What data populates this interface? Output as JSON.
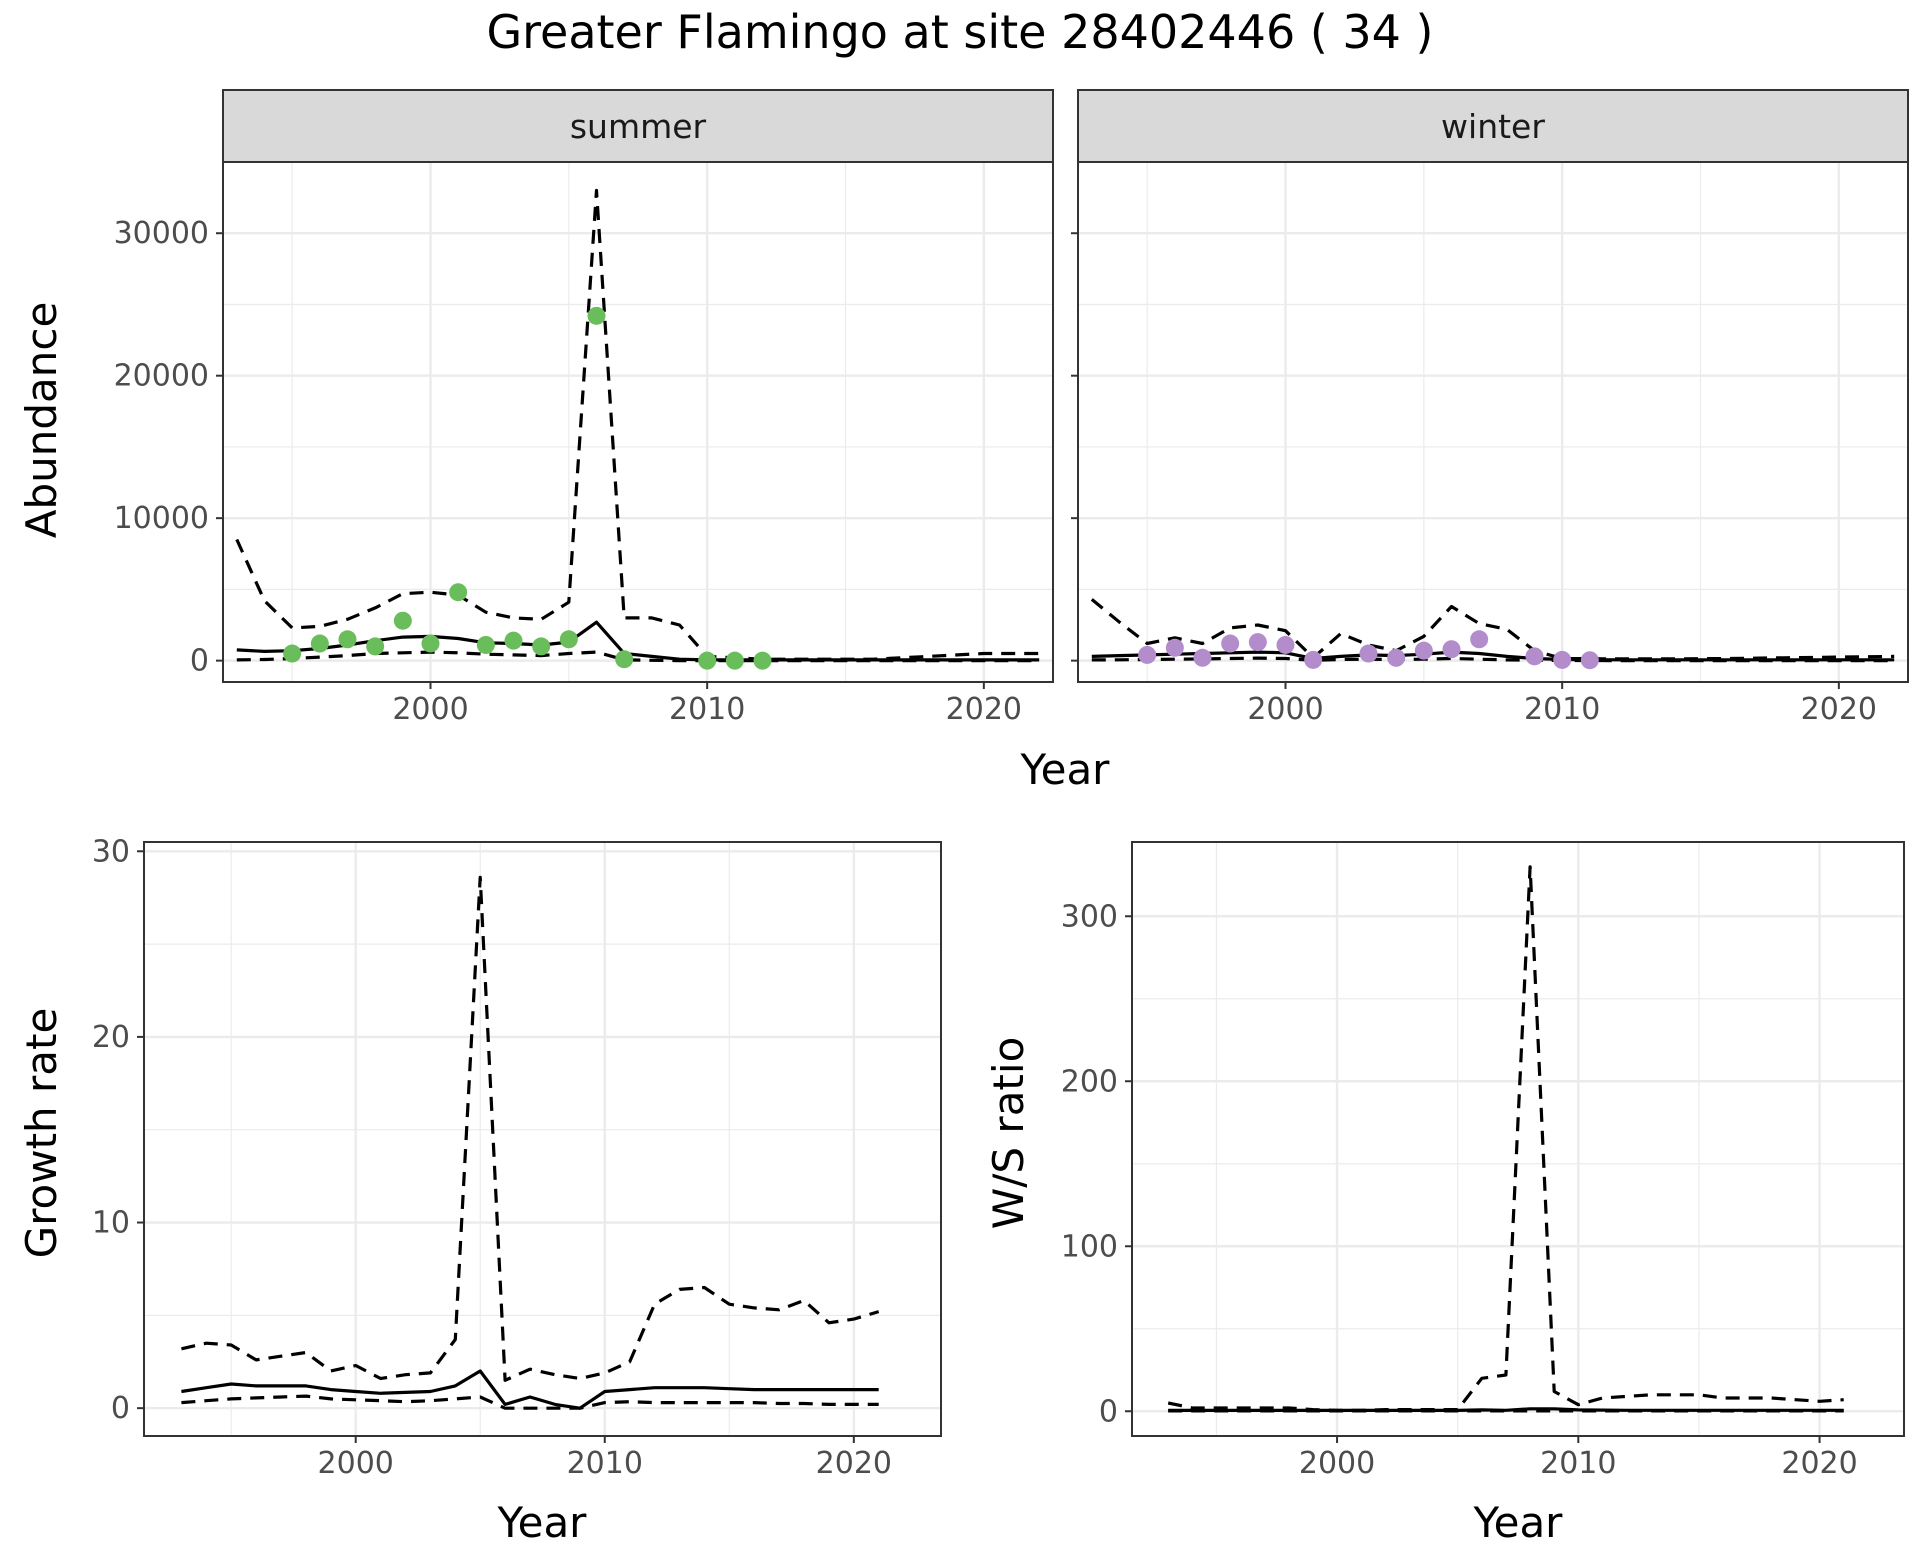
{
  "title": "Greater Flamingo at site 28402446 ( 34 )",
  "colors": {
    "summer_points": "#6abd5b",
    "winter_points": "#b38ccc",
    "lines": "#000000",
    "strip_fill": "#d9d9d9",
    "grid": "#ebebeb"
  },
  "chart_data": [
    {
      "type": "line",
      "panel": "summer",
      "strip_label": "summer",
      "xlabel": "",
      "ylabel": "Abundance",
      "xlim": [
        1992.5,
        2022.5
      ],
      "ylim": [
        -1500,
        35000
      ],
      "x_ticks": [
        2000,
        2010,
        2020
      ],
      "y_ticks": [
        0,
        10000,
        20000,
        30000
      ],
      "grid": true,
      "series": [
        {
          "role": "estimate",
          "style": "solid",
          "x": [
            1993,
            1994,
            1995,
            1996,
            1997,
            1998,
            1999,
            2000,
            2001,
            2002,
            2003,
            2004,
            2005,
            2006,
            2007,
            2008,
            2009,
            2010,
            2012,
            2014,
            2016,
            2018,
            2020,
            2022
          ],
          "y": [
            750,
            650,
            700,
            850,
            1100,
            1400,
            1650,
            1700,
            1550,
            1250,
            1200,
            1100,
            1300,
            2700,
            500,
            300,
            100,
            50,
            50,
            50,
            50,
            50,
            50,
            50
          ]
        },
        {
          "role": "upper",
          "style": "dashed",
          "x": [
            1993,
            1994,
            1995,
            1996,
            1997,
            1998,
            1999,
            2000,
            2001,
            2002,
            2003,
            2004,
            2005,
            2006,
            2007,
            2008,
            2009,
            2010,
            2012,
            2014,
            2016,
            2018,
            2020,
            2022
          ],
          "y": [
            8500,
            4200,
            2300,
            2400,
            2900,
            3700,
            4700,
            4800,
            4600,
            3400,
            3000,
            2900,
            4100,
            33000,
            3000,
            3000,
            2500,
            300,
            100,
            100,
            100,
            300,
            500,
            500
          ]
        },
        {
          "role": "lower",
          "style": "dashed",
          "x": [
            1993,
            1994,
            1995,
            1996,
            1997,
            1998,
            1999,
            2000,
            2001,
            2002,
            2003,
            2004,
            2005,
            2006,
            2007,
            2008,
            2009,
            2010,
            2012,
            2014,
            2016,
            2018,
            2020,
            2022
          ],
          "y": [
            50,
            80,
            150,
            250,
            350,
            500,
            550,
            600,
            550,
            450,
            400,
            350,
            500,
            600,
            60,
            20,
            5,
            0,
            0,
            0,
            0,
            0,
            0,
            0
          ]
        },
        {
          "role": "observed",
          "style": "points",
          "x": [
            1995,
            1996,
            1997,
            1998,
            1999,
            2000,
            2001,
            2002,
            2003,
            2004,
            2005,
            2006,
            2007,
            2010,
            2011,
            2012
          ],
          "y": [
            500,
            1200,
            1500,
            1000,
            2800,
            1200,
            4800,
            1100,
            1400,
            1000,
            1500,
            24200,
            100,
            0,
            0,
            0
          ]
        }
      ]
    },
    {
      "type": "line",
      "panel": "winter",
      "strip_label": "winter",
      "xlabel": "",
      "ylabel": "",
      "xlim": [
        1992.5,
        2022.5
      ],
      "ylim": [
        -1500,
        35000
      ],
      "x_ticks": [
        2000,
        2010,
        2020
      ],
      "y_ticks": [
        0,
        10000,
        20000,
        30000
      ],
      "grid": true,
      "series": [
        {
          "role": "estimate",
          "style": "solid",
          "x": [
            1993,
            1994,
            1995,
            1996,
            1997,
            1998,
            1999,
            2000,
            2001,
            2002,
            2003,
            2004,
            2005,
            2006,
            2007,
            2008,
            2009,
            2010,
            2012,
            2014,
            2016,
            2018,
            2020,
            2022
          ],
          "y": [
            300,
            350,
            400,
            450,
            500,
            550,
            600,
            550,
            150,
            300,
            400,
            350,
            450,
            600,
            500,
            300,
            150,
            80,
            60,
            60,
            60,
            60,
            60,
            60
          ]
        },
        {
          "role": "upper",
          "style": "dashed",
          "x": [
            1993,
            1994,
            1995,
            1996,
            1997,
            1998,
            1999,
            2000,
            2001,
            2002,
            2003,
            2004,
            2005,
            2006,
            2007,
            2008,
            2009,
            2010,
            2012,
            2014,
            2016,
            2018,
            2020,
            2022
          ],
          "y": [
            4300,
            2700,
            1200,
            1600,
            1200,
            2300,
            2500,
            2100,
            200,
            1900,
            1100,
            700,
            1700,
            3800,
            2600,
            2200,
            700,
            150,
            120,
            120,
            150,
            200,
            250,
            300
          ]
        },
        {
          "role": "lower",
          "style": "dashed",
          "x": [
            1993,
            1994,
            1995,
            1996,
            1997,
            1998,
            1999,
            2000,
            2001,
            2002,
            2003,
            2004,
            2005,
            2006,
            2007,
            2008,
            2009,
            2010,
            2012,
            2014,
            2016,
            2018,
            2020,
            2022
          ],
          "y": [
            50,
            60,
            80,
            100,
            120,
            150,
            180,
            150,
            20,
            80,
            100,
            80,
            100,
            150,
            100,
            50,
            20,
            10,
            5,
            5,
            5,
            5,
            5,
            5
          ]
        },
        {
          "role": "observed",
          "style": "points",
          "x": [
            1995,
            1996,
            1997,
            1998,
            1999,
            2000,
            2001,
            2003,
            2004,
            2005,
            2006,
            2007,
            2009,
            2010,
            2011
          ],
          "y": [
            400,
            900,
            200,
            1200,
            1300,
            1100,
            50,
            500,
            200,
            700,
            800,
            1500,
            300,
            50,
            30
          ]
        }
      ]
    },
    {
      "type": "line",
      "panel": "growth",
      "xlabel": "Year",
      "ylabel": "Growth rate",
      "xlim": [
        1991.5,
        2023.5
      ],
      "ylim": [
        -1.5,
        30.5
      ],
      "x_ticks": [
        2000,
        2010,
        2020
      ],
      "y_ticks": [
        0,
        10,
        20,
        30
      ],
      "grid": true,
      "series": [
        {
          "role": "estimate",
          "style": "solid",
          "x": [
            1993,
            1994,
            1995,
            1996,
            1997,
            1998,
            1999,
            2000,
            2001,
            2002,
            2003,
            2004,
            2005,
            2006,
            2007,
            2008,
            2009,
            2010,
            2011,
            2012,
            2013,
            2014,
            2015,
            2016,
            2017,
            2018,
            2019,
            2020,
            2021
          ],
          "y": [
            0.9,
            1.1,
            1.3,
            1.2,
            1.2,
            1.2,
            1.0,
            0.9,
            0.8,
            0.85,
            0.9,
            1.2,
            2.0,
            0.2,
            0.6,
            0.2,
            0.0,
            0.9,
            1.0,
            1.1,
            1.1,
            1.1,
            1.05,
            1.0,
            1.0,
            1.0,
            1.0,
            1.0,
            1.0
          ]
        },
        {
          "role": "upper",
          "style": "dashed",
          "x": [
            1993,
            1994,
            1995,
            1996,
            1997,
            1998,
            1999,
            2000,
            2001,
            2002,
            2003,
            2004,
            2005,
            2006,
            2007,
            2008,
            2009,
            2010,
            2011,
            2012,
            2013,
            2014,
            2015,
            2016,
            2017,
            2018,
            2019,
            2020,
            2021
          ],
          "y": [
            3.2,
            3.5,
            3.4,
            2.6,
            2.8,
            3.0,
            2.0,
            2.3,
            1.6,
            1.8,
            1.9,
            3.7,
            28.6,
            1.5,
            2.1,
            1.8,
            1.6,
            1.9,
            2.5,
            5.6,
            6.4,
            6.5,
            5.6,
            5.4,
            5.3,
            5.8,
            4.6,
            4.8,
            5.2
          ]
        },
        {
          "role": "lower",
          "style": "dashed",
          "x": [
            1993,
            1994,
            1995,
            1996,
            1997,
            1998,
            1999,
            2000,
            2001,
            2002,
            2003,
            2004,
            2005,
            2006,
            2007,
            2008,
            2009,
            2010,
            2011,
            2012,
            2013,
            2014,
            2015,
            2016,
            2017,
            2018,
            2019,
            2020,
            2021
          ],
          "y": [
            0.3,
            0.4,
            0.5,
            0.55,
            0.6,
            0.65,
            0.5,
            0.45,
            0.4,
            0.35,
            0.4,
            0.5,
            0.6,
            0.0,
            0.0,
            0.0,
            0.0,
            0.3,
            0.35,
            0.3,
            0.3,
            0.3,
            0.3,
            0.3,
            0.25,
            0.25,
            0.2,
            0.2,
            0.2
          ]
        }
      ]
    },
    {
      "type": "line",
      "panel": "ws_ratio",
      "xlabel": "Year",
      "ylabel": "W/S ratio",
      "xlim": [
        1991.5,
        2023.5
      ],
      "ylim": [
        -15,
        345
      ],
      "x_ticks": [
        2000,
        2010,
        2020
      ],
      "y_ticks": [
        0,
        100,
        200,
        300
      ],
      "grid": true,
      "series": [
        {
          "role": "estimate",
          "style": "solid",
          "x": [
            1993,
            1995,
            1997,
            1999,
            2001,
            2003,
            2005,
            2006,
            2007,
            2008,
            2009,
            2010,
            2012,
            2014,
            2016,
            2018,
            2020,
            2021
          ],
          "y": [
            0.5,
            0.5,
            0.5,
            0.5,
            0.5,
            0.5,
            0.5,
            0.8,
            0.6,
            1.5,
            1.5,
            0.8,
            0.6,
            0.6,
            0.6,
            0.6,
            0.6,
            0.6
          ]
        },
        {
          "role": "upper",
          "style": "dashed",
          "x": [
            1993,
            1994,
            1995,
            1996,
            1997,
            1998,
            1999,
            2000,
            2001,
            2002,
            2003,
            2004,
            2005,
            2006,
            2007,
            2008,
            2009,
            2010,
            2011,
            2012,
            2013,
            2014,
            2015,
            2016,
            2017,
            2018,
            2019,
            2020,
            2021
          ],
          "y": [
            5,
            2,
            2,
            2,
            2,
            2,
            1,
            0.5,
            0.5,
            1,
            1,
            1,
            1,
            20,
            22,
            330,
            12,
            4,
            8,
            9,
            10,
            10,
            10,
            8,
            8,
            8,
            7,
            6,
            7
          ]
        },
        {
          "role": "lower",
          "style": "dashed",
          "x": [
            1993,
            1995,
            1997,
            1999,
            2001,
            2003,
            2005,
            2007,
            2009,
            2011,
            2013,
            2015,
            2017,
            2019,
            2021
          ],
          "y": [
            0.2,
            0.2,
            0.2,
            0.2,
            0.2,
            0.2,
            0.2,
            0.2,
            0.2,
            0.2,
            0.2,
            0.2,
            0.2,
            0.2,
            0.2
          ]
        }
      ]
    }
  ]
}
